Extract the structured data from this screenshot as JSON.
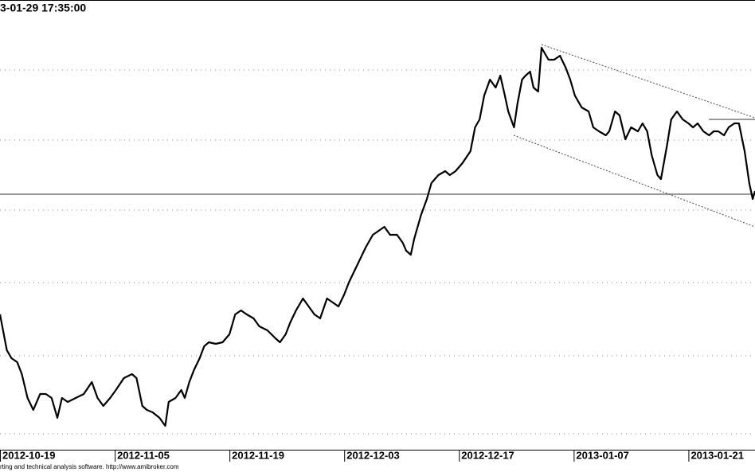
{
  "chart_data": {
    "type": "line",
    "title": "3-01-29 17:35:00",
    "footer": "rting and technical analysis software. http://www.amibroker.com",
    "xlim": [
      0,
      65.8
    ],
    "ylim": [
      0,
      565
    ],
    "xticks": [
      {
        "value": 0,
        "label": "2012-10-19"
      },
      {
        "value": 10,
        "label": "2012-11-05"
      },
      {
        "value": 20,
        "label": "2012-11-19"
      },
      {
        "value": 30,
        "label": "2012-12-03"
      },
      {
        "value": 40,
        "label": "2012-12-17"
      },
      {
        "value": 50,
        "label": "2013-01-07"
      },
      {
        "value": 60,
        "label": "2013-01-21"
      }
    ],
    "ygrid": [
      477,
      389,
      301,
      210,
      118,
      20
    ],
    "hline": 321,
    "color": "#000000",
    "x": [
      0,
      0.6,
      1.0,
      1.5,
      1.9,
      2.4,
      2.9,
      3.5,
      4.0,
      4.5,
      5.0,
      5.4,
      5.9,
      6.6,
      7.3,
      8.0,
      8.5,
      9.0,
      9.6,
      10.1,
      10.8,
      11.5,
      11.9,
      12.4,
      12.8,
      13.3,
      13.9,
      14.4,
      14.7,
      15.3,
      15.8,
      16.1,
      16.5,
      16.9,
      17.4,
      17.8,
      18.2,
      18.8,
      19.4,
      20.0,
      20.5,
      21.0,
      21.5,
      22.1,
      22.6,
      23.3,
      24.0,
      24.4,
      24.9,
      25.3,
      25.8,
      26.4,
      26.9,
      27.4,
      27.9,
      28.5,
      29.0,
      29.5,
      30.0,
      30.4,
      30.9,
      31.4,
      31.9,
      32.5,
      33.0,
      33.5,
      34.0,
      34.6,
      35.1,
      35.4,
      35.8,
      36.1,
      36.7,
      37.2,
      37.6,
      38.2,
      38.8,
      39.2,
      39.7,
      40.3,
      41.0,
      41.4,
      41.8,
      42.2,
      42.7,
      43.2,
      43.6,
      44.0,
      44.3,
      44.8,
      45.1,
      45.5,
      45.8,
      46.2,
      46.5,
      46.9,
      47.2,
      47.8,
      48.3,
      48.8,
      49.3,
      49.7,
      50.1,
      50.7,
      51.3,
      51.7,
      52.2,
      52.8,
      53.1,
      53.6,
      54.0,
      54.5,
      55.0,
      55.6,
      56.0,
      56.4,
      56.8,
      57.3,
      57.6,
      58.1,
      58.5,
      59.0,
      59.5,
      60.0,
      60.4,
      60.8,
      61.3,
      61.8,
      62.2,
      62.6,
      63.1,
      63.5,
      64.0,
      64.4,
      64.9,
      65.3,
      65.6,
      65.8
    ],
    "values": [
      170,
      125,
      115,
      110,
      95,
      65,
      50,
      70,
      70,
      65,
      40,
      65,
      60,
      65,
      70,
      85,
      65,
      55,
      65,
      75,
      90,
      95,
      90,
      55,
      50,
      47,
      40,
      30,
      60,
      65,
      75,
      65,
      85,
      100,
      115,
      130,
      135,
      133,
      135,
      145,
      170,
      175,
      170,
      165,
      155,
      150,
      140,
      135,
      145,
      160,
      175,
      190,
      180,
      170,
      165,
      190,
      185,
      180,
      195,
      210,
      225,
      240,
      255,
      270,
      275,
      280,
      270,
      270,
      260,
      250,
      245,
      265,
      295,
      315,
      335,
      345,
      350,
      345,
      350,
      360,
      375,
      405,
      415,
      445,
      465,
      455,
      470,
      445,
      425,
      405,
      435,
      465,
      470,
      475,
      455,
      450,
      505,
      490,
      490,
      495,
      480,
      465,
      445,
      430,
      425,
      405,
      400,
      395,
      400,
      425,
      420,
      390,
      405,
      400,
      410,
      400,
      370,
      345,
      340,
      380,
      415,
      425,
      415,
      410,
      405,
      410,
      400,
      395,
      400,
      400,
      395,
      405,
      410,
      410,
      375,
      335,
      315,
      325
    ]
  }
}
